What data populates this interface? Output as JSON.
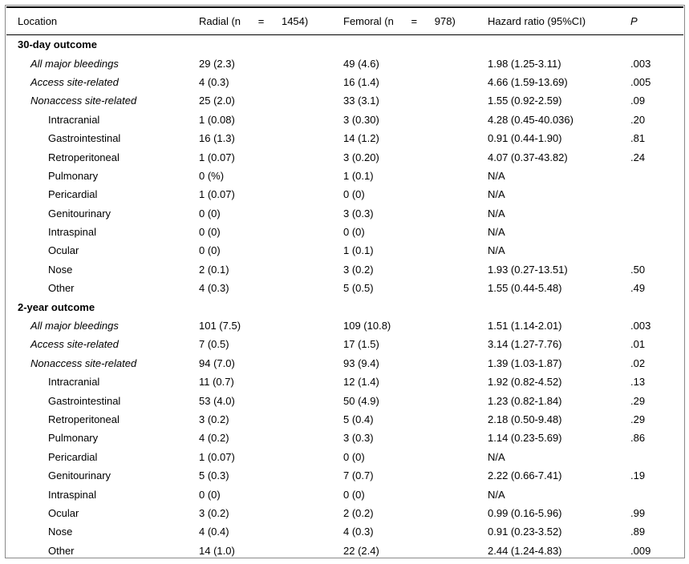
{
  "table": {
    "columns": [
      {
        "key": "location",
        "label": "Location",
        "italic": false
      },
      {
        "key": "radial",
        "label": "Radial (n      =      1454)",
        "italic": false
      },
      {
        "key": "femoral",
        "label": "Femoral (n      =      978)",
        "italic": false
      },
      {
        "key": "hazard",
        "label": "Hazard ratio (95%CI)",
        "italic": false
      },
      {
        "key": "p",
        "label": "P",
        "italic": true
      }
    ],
    "rows": [
      {
        "label": "30-day outcome",
        "indent": 0,
        "section": true,
        "italic": false,
        "radial": "",
        "femoral": "",
        "hazard": "",
        "p": ""
      },
      {
        "label": "All major bleedings",
        "indent": 1,
        "section": false,
        "italic": true,
        "radial": "29 (2.3)",
        "femoral": "49 (4.6)",
        "hazard": "1.98 (1.25-3.11)",
        "p": ".003"
      },
      {
        "label": "Access site-related",
        "indent": 1,
        "section": false,
        "italic": true,
        "radial": "4 (0.3)",
        "femoral": "16 (1.4)",
        "hazard": "4.66 (1.59-13.69)",
        "p": ".005"
      },
      {
        "label": "Nonaccess site-related",
        "indent": 1,
        "section": false,
        "italic": true,
        "radial": "25 (2.0)",
        "femoral": "33 (3.1)",
        "hazard": "1.55 (0.92-2.59)",
        "p": ".09"
      },
      {
        "label": "Intracranial",
        "indent": 2,
        "section": false,
        "italic": false,
        "radial": "1 (0.08)",
        "femoral": "3 (0.30)",
        "hazard": "4.28 (0.45-40.036)",
        "p": ".20"
      },
      {
        "label": "Gastrointestinal",
        "indent": 2,
        "section": false,
        "italic": false,
        "radial": "16 (1.3)",
        "femoral": "14 (1.2)",
        "hazard": "0.91 (0.44-1.90)",
        "p": ".81"
      },
      {
        "label": "Retroperitoneal",
        "indent": 2,
        "section": false,
        "italic": false,
        "radial": "1 (0.07)",
        "femoral": "3 (0.20)",
        "hazard": "4.07 (0.37-43.82)",
        "p": ".24"
      },
      {
        "label": "Pulmonary",
        "indent": 2,
        "section": false,
        "italic": false,
        "radial": "0 (%)",
        "femoral": "1 (0.1)",
        "hazard": "N/A",
        "p": ""
      },
      {
        "label": "Pericardial",
        "indent": 2,
        "section": false,
        "italic": false,
        "radial": "1 (0.07)",
        "femoral": "0 (0)",
        "hazard": "N/A",
        "p": ""
      },
      {
        "label": "Genitourinary",
        "indent": 2,
        "section": false,
        "italic": false,
        "radial": "0 (0)",
        "femoral": "3 (0.3)",
        "hazard": "N/A",
        "p": ""
      },
      {
        "label": "Intraspinal",
        "indent": 2,
        "section": false,
        "italic": false,
        "radial": "0 (0)",
        "femoral": "0 (0)",
        "hazard": "N/A",
        "p": ""
      },
      {
        "label": "Ocular",
        "indent": 2,
        "section": false,
        "italic": false,
        "radial": "0 (0)",
        "femoral": "1 (0.1)",
        "hazard": "N/A",
        "p": ""
      },
      {
        "label": "Nose",
        "indent": 2,
        "section": false,
        "italic": false,
        "radial": "2 (0.1)",
        "femoral": "3 (0.2)",
        "hazard": "1.93 (0.27-13.51)",
        "p": ".50"
      },
      {
        "label": "Other",
        "indent": 2,
        "section": false,
        "italic": false,
        "radial": "4 (0.3)",
        "femoral": "5 (0.5)",
        "hazard": "1.55 (0.44-5.48)",
        "p": ".49"
      },
      {
        "label": "2-year outcome",
        "indent": 0,
        "section": true,
        "italic": false,
        "radial": "",
        "femoral": "",
        "hazard": "",
        "p": ""
      },
      {
        "label": "All major bleedings",
        "indent": 1,
        "section": false,
        "italic": true,
        "radial": "101 (7.5)",
        "femoral": "109 (10.8)",
        "hazard": "1.51 (1.14-2.01)",
        "p": ".003"
      },
      {
        "label": "Access site-related",
        "indent": 1,
        "section": false,
        "italic": true,
        "radial": "7 (0.5)",
        "femoral": "17 (1.5)",
        "hazard": "3.14 (1.27-7.76)",
        "p": ".01"
      },
      {
        "label": "Nonaccess site-related",
        "indent": 1,
        "section": false,
        "italic": true,
        "radial": "94 (7.0)",
        "femoral": "93 (9.4)",
        "hazard": "1.39 (1.03-1.87)",
        "p": ".02"
      },
      {
        "label": "Intracranial",
        "indent": 2,
        "section": false,
        "italic": false,
        "radial": "11 (0.7)",
        "femoral": "12 (1.4)",
        "hazard": "1.92 (0.82-4.52)",
        "p": ".13"
      },
      {
        "label": "Gastrointestinal",
        "indent": 2,
        "section": false,
        "italic": false,
        "radial": "53 (4.0)",
        "femoral": "50 (4.9)",
        "hazard": "1.23 (0.82-1.84)",
        "p": ".29"
      },
      {
        "label": "Retroperitoneal",
        "indent": 2,
        "section": false,
        "italic": false,
        "radial": "3 (0.2)",
        "femoral": "5 (0.4)",
        "hazard": "2.18 (0.50-9.48)",
        "p": ".29"
      },
      {
        "label": "Pulmonary",
        "indent": 2,
        "section": false,
        "italic": false,
        "radial": "4 (0.2)",
        "femoral": "3 (0.3)",
        "hazard": "1.14 (0.23-5.69)",
        "p": ".86"
      },
      {
        "label": "Pericardial",
        "indent": 2,
        "section": false,
        "italic": false,
        "radial": "1 (0.07)",
        "femoral": "0 (0)",
        "hazard": "N/A",
        "p": ""
      },
      {
        "label": "Genitourinary",
        "indent": 2,
        "section": false,
        "italic": false,
        "radial": "5 (0.3)",
        "femoral": "7 (0.7)",
        "hazard": "2.22 (0.66-7.41)",
        "p": ".19"
      },
      {
        "label": "Intraspinal",
        "indent": 2,
        "section": false,
        "italic": false,
        "radial": "0 (0)",
        "femoral": "0 (0)",
        "hazard": "N/A",
        "p": ""
      },
      {
        "label": "Ocular",
        "indent": 2,
        "section": false,
        "italic": false,
        "radial": "3 (0.2)",
        "femoral": "2 (0.2)",
        "hazard": "0.99 (0.16-5.96)",
        "p": ".99"
      },
      {
        "label": "Nose",
        "indent": 2,
        "section": false,
        "italic": false,
        "radial": "4 (0.4)",
        "femoral": "4 (0.3)",
        "hazard": "0.91 (0.23-3.52)",
        "p": ".89"
      },
      {
        "label": "Other",
        "indent": 2,
        "section": false,
        "italic": false,
        "radial": "14 (1.0)",
        "femoral": "22 (2.4)",
        "hazard": "2.44 (1.24-4.83)",
        "p": ".009"
      }
    ]
  }
}
